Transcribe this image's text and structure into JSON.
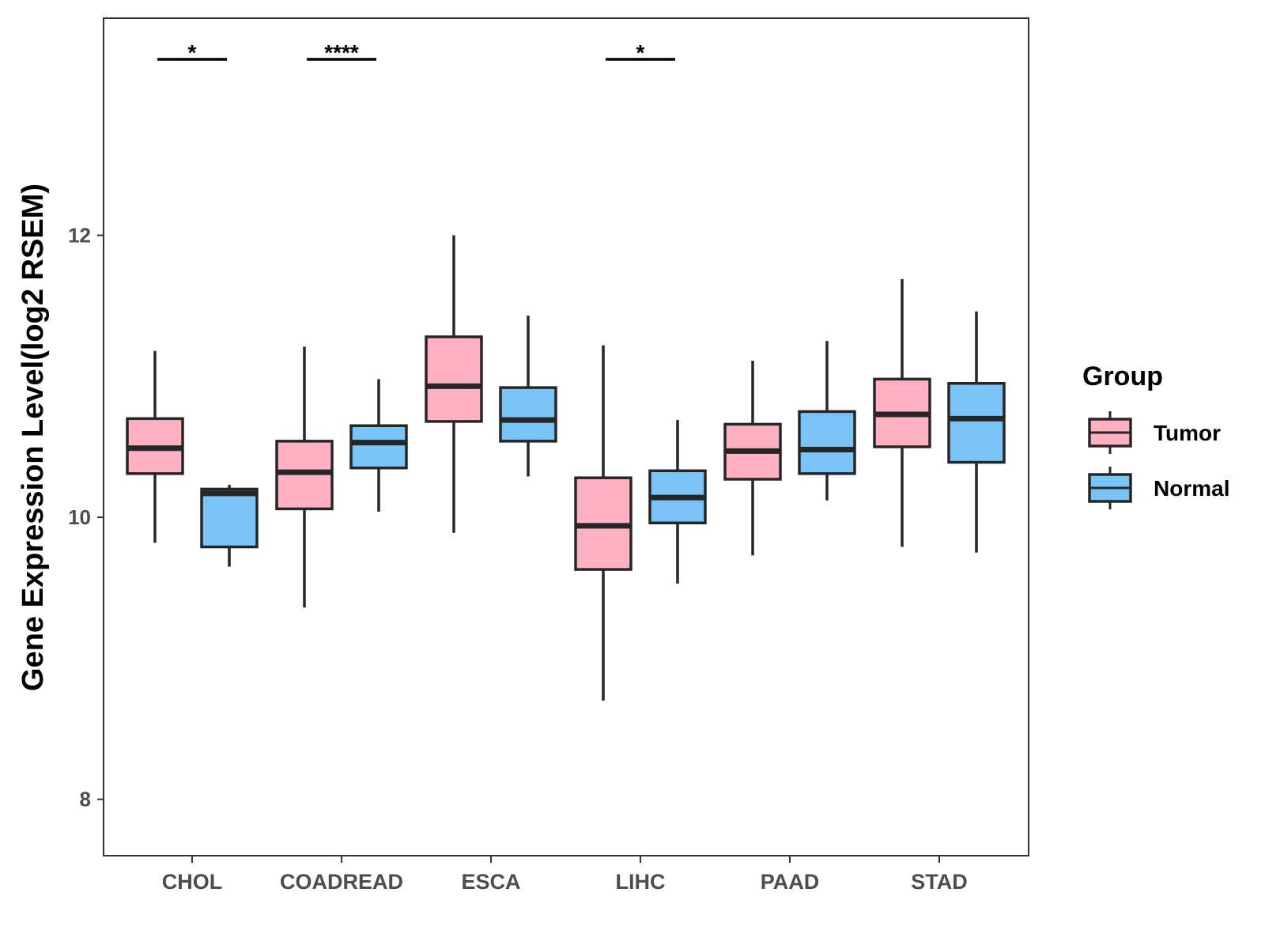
{
  "chart_data": {
    "type": "boxplot",
    "title": "",
    "xlabel": "",
    "ylabel": "Gene Expression Level(log2 RSEM)",
    "ylim": [
      7.6,
      13.54
    ],
    "yticks": [
      8,
      10,
      12
    ],
    "grid": false,
    "categories": [
      "CHOL",
      "COADREAD",
      "ESCA",
      "LIHC",
      "PAAD",
      "STAD"
    ],
    "legend": {
      "title": "Group",
      "position": "right",
      "entries": [
        {
          "name": "Tumor",
          "color": "#ffb0c1"
        },
        {
          "name": "Normal",
          "color": "#79c3f7"
        }
      ]
    },
    "series": [
      {
        "name": "Tumor",
        "color": "#ffb0c1",
        "boxes": [
          {
            "category": "CHOL",
            "whisker_low": 9.82,
            "q1": 10.31,
            "median": 10.49,
            "q3": 10.7,
            "whisker_high": 11.18
          },
          {
            "category": "COADREAD",
            "whisker_low": 9.36,
            "q1": 10.06,
            "median": 10.32,
            "q3": 10.54,
            "whisker_high": 11.21
          },
          {
            "category": "ESCA",
            "whisker_low": 9.89,
            "q1": 10.68,
            "median": 10.93,
            "q3": 11.28,
            "whisker_high": 12.0
          },
          {
            "category": "LIHC",
            "whisker_low": 8.7,
            "q1": 9.63,
            "median": 9.94,
            "q3": 10.28,
            "whisker_high": 11.22
          },
          {
            "category": "PAAD",
            "whisker_low": 9.73,
            "q1": 10.27,
            "median": 10.47,
            "q3": 10.66,
            "whisker_high": 11.11
          },
          {
            "category": "STAD",
            "whisker_low": 9.79,
            "q1": 10.5,
            "median": 10.73,
            "q3": 10.98,
            "whisker_high": 11.69
          }
        ]
      },
      {
        "name": "Normal",
        "color": "#79c3f7",
        "boxes": [
          {
            "category": "CHOL",
            "whisker_low": 9.65,
            "q1": 9.79,
            "median": 10.17,
            "q3": 10.2,
            "whisker_high": 10.23
          },
          {
            "category": "COADREAD",
            "whisker_low": 10.04,
            "q1": 10.35,
            "median": 10.53,
            "q3": 10.65,
            "whisker_high": 10.98
          },
          {
            "category": "ESCA",
            "whisker_low": 10.29,
            "q1": 10.54,
            "median": 10.69,
            "q3": 10.92,
            "whisker_high": 11.43
          },
          {
            "category": "LIHC",
            "whisker_low": 9.53,
            "q1": 9.96,
            "median": 10.14,
            "q3": 10.33,
            "whisker_high": 10.69
          },
          {
            "category": "PAAD",
            "whisker_low": 10.12,
            "q1": 10.31,
            "median": 10.48,
            "q3": 10.75,
            "whisker_high": 11.25
          },
          {
            "category": "STAD",
            "whisker_low": 9.75,
            "q1": 10.39,
            "median": 10.7,
            "q3": 10.95,
            "whisker_high": 11.46
          }
        ]
      }
    ],
    "annotations": [
      {
        "category": "CHOL",
        "label": "*"
      },
      {
        "category": "COADREAD",
        "label": "****"
      },
      {
        "category": "LIHC",
        "label": "*"
      }
    ]
  }
}
